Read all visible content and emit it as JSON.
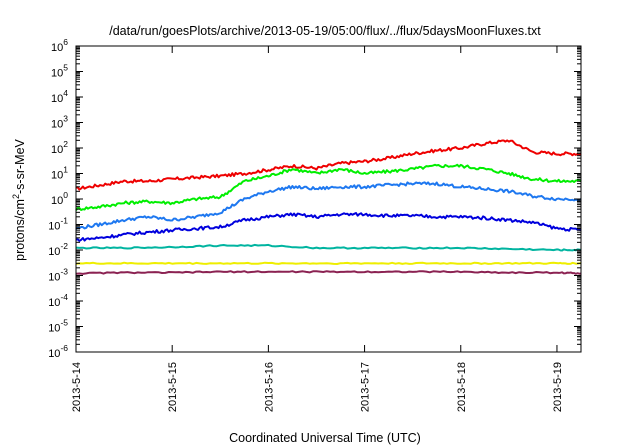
{
  "chart_data": {
    "type": "line",
    "title": "/data/run/goesPlots/archive/2013-05-19/05:00/flux/../flux/5daysMoonFluxes.txt",
    "xlabel": "Coordinated Universal Time (UTC)",
    "ylabel": "protons/cm2-s-sr-MeV",
    "yscale": "log",
    "xlim": [
      "2013-05-14",
      "2013-05-19 06:00"
    ],
    "ylim": [
      1e-06,
      1000000.0
    ],
    "grid": false,
    "legend": "none",
    "x_tick_labels": [
      "2013-5-14",
      "2013-5-15",
      "2013-5-16",
      "2013-5-17",
      "2013-5-18",
      "2013-5-19"
    ],
    "y_ticks": [
      {
        "base": "10",
        "exp": "-6"
      },
      {
        "base": "10",
        "exp": "-5"
      },
      {
        "base": "10",
        "exp": "-4"
      },
      {
        "base": "10",
        "exp": "-3"
      },
      {
        "base": "10",
        "exp": "-2"
      },
      {
        "base": "10",
        "exp": "-1"
      },
      {
        "base": "10",
        "exp": "0"
      },
      {
        "base": "10",
        "exp": "1"
      },
      {
        "base": "10",
        "exp": "2"
      },
      {
        "base": "10",
        "exp": "3"
      },
      {
        "base": "10",
        "exp": "4"
      },
      {
        "base": "10",
        "exp": "5"
      },
      {
        "base": "10",
        "exp": "6"
      }
    ],
    "series": [
      {
        "color": "#ee0000",
        "x": [
          "2013-05-14 00:00",
          "2013-05-14 06:00",
          "2013-05-14 12:00",
          "2013-05-14 18:00",
          "2013-05-15 00:00",
          "2013-05-15 06:00",
          "2013-05-15 12:00",
          "2013-05-15 18:00",
          "2013-05-16 00:00",
          "2013-05-16 06:00",
          "2013-05-16 12:00",
          "2013-05-16 18:00",
          "2013-05-17 00:00",
          "2013-05-17 06:00",
          "2013-05-17 12:00",
          "2013-05-17 18:00",
          "2013-05-18 00:00",
          "2013-05-18 06:00",
          "2013-05-18 12:00",
          "2013-05-18 18:00",
          "2013-05-19 00:00",
          "2013-05-19 06:00"
        ],
        "values": [
          2.5,
          3.5,
          5,
          5,
          6,
          7,
          8,
          10,
          14,
          20,
          16,
          25,
          30,
          40,
          60,
          80,
          100,
          150,
          200,
          70,
          60,
          60
        ]
      },
      {
        "color": "#00ee00",
        "x": [
          "2013-05-14 00:00",
          "2013-05-14 06:00",
          "2013-05-14 12:00",
          "2013-05-14 18:00",
          "2013-05-15 00:00",
          "2013-05-15 06:00",
          "2013-05-15 12:00",
          "2013-05-15 18:00",
          "2013-05-16 00:00",
          "2013-05-16 06:00",
          "2013-05-16 12:00",
          "2013-05-16 18:00",
          "2013-05-17 00:00",
          "2013-05-17 06:00",
          "2013-05-17 12:00",
          "2013-05-17 18:00",
          "2013-05-18 00:00",
          "2013-05-18 06:00",
          "2013-05-18 12:00",
          "2013-05-18 18:00",
          "2013-05-19 00:00",
          "2013-05-19 06:00"
        ],
        "values": [
          0.4,
          0.5,
          0.7,
          0.8,
          0.7,
          1,
          1.2,
          5,
          8,
          15,
          10,
          15,
          10,
          12,
          15,
          20,
          20,
          15,
          10,
          6,
          5,
          5
        ]
      },
      {
        "color": "#1e78f0",
        "x": [
          "2013-05-14 00:00",
          "2013-05-14 06:00",
          "2013-05-14 12:00",
          "2013-05-14 18:00",
          "2013-05-15 00:00",
          "2013-05-15 06:00",
          "2013-05-15 12:00",
          "2013-05-15 18:00",
          "2013-05-16 00:00",
          "2013-05-16 06:00",
          "2013-05-16 12:00",
          "2013-05-16 18:00",
          "2013-05-17 00:00",
          "2013-05-17 06:00",
          "2013-05-17 12:00",
          "2013-05-17 18:00",
          "2013-05-18 00:00",
          "2013-05-18 06:00",
          "2013-05-18 12:00",
          "2013-05-18 18:00",
          "2013-05-19 00:00",
          "2013-05-19 06:00"
        ],
        "values": [
          0.07,
          0.1,
          0.15,
          0.2,
          0.15,
          0.2,
          0.3,
          1,
          2,
          3,
          2.5,
          3,
          3,
          3.5,
          4,
          4,
          3,
          2.5,
          2,
          1.3,
          1,
          1
        ]
      },
      {
        "color": "#0000dd",
        "x": [
          "2013-05-14 00:00",
          "2013-05-14 06:00",
          "2013-05-14 12:00",
          "2013-05-14 18:00",
          "2013-05-15 00:00",
          "2013-05-15 06:00",
          "2013-05-15 12:00",
          "2013-05-15 18:00",
          "2013-05-16 00:00",
          "2013-05-16 06:00",
          "2013-05-16 12:00",
          "2013-05-16 18:00",
          "2013-05-17 00:00",
          "2013-05-17 06:00",
          "2013-05-17 12:00",
          "2013-05-17 18:00",
          "2013-05-18 00:00",
          "2013-05-18 06:00",
          "2013-05-18 12:00",
          "2013-05-18 18:00",
          "2013-05-19 00:00",
          "2013-05-19 06:00"
        ],
        "values": [
          0.025,
          0.03,
          0.04,
          0.05,
          0.06,
          0.07,
          0.08,
          0.15,
          0.2,
          0.25,
          0.2,
          0.25,
          0.25,
          0.22,
          0.22,
          0.2,
          0.2,
          0.18,
          0.15,
          0.12,
          0.07,
          0.06
        ]
      },
      {
        "color": "#00b4a0",
        "x": [
          "2013-05-14 00:00",
          "2013-05-14 12:00",
          "2013-05-15 00:00",
          "2013-05-15 12:00",
          "2013-05-16 00:00",
          "2013-05-16 12:00",
          "2013-05-17 00:00",
          "2013-05-17 12:00",
          "2013-05-18 00:00",
          "2013-05-18 12:00",
          "2013-05-19 00:00",
          "2013-05-19 06:00"
        ],
        "values": [
          0.012,
          0.012,
          0.013,
          0.015,
          0.015,
          0.012,
          0.012,
          0.012,
          0.012,
          0.011,
          0.01,
          0.01
        ]
      },
      {
        "color": "#eeee00",
        "x": [
          "2013-05-14 00:00",
          "2013-05-14 12:00",
          "2013-05-15 00:00",
          "2013-05-15 12:00",
          "2013-05-16 00:00",
          "2013-05-16 12:00",
          "2013-05-17 00:00",
          "2013-05-17 12:00",
          "2013-05-18 00:00",
          "2013-05-18 12:00",
          "2013-05-19 00:00",
          "2013-05-19 06:00"
        ],
        "values": [
          0.003,
          0.003,
          0.003,
          0.003,
          0.003,
          0.003,
          0.003,
          0.003,
          0.003,
          0.003,
          0.003,
          0.003
        ]
      },
      {
        "color": "#8b2252",
        "x": [
          "2013-05-14 00:00",
          "2013-05-14 12:00",
          "2013-05-15 00:00",
          "2013-05-15 12:00",
          "2013-05-16 00:00",
          "2013-05-16 12:00",
          "2013-05-17 00:00",
          "2013-05-17 12:00",
          "2013-05-18 00:00",
          "2013-05-18 12:00",
          "2013-05-19 00:00",
          "2013-05-19 06:00"
        ],
        "values": [
          0.0012,
          0.0013,
          0.0013,
          0.0014,
          0.0014,
          0.0014,
          0.0014,
          0.0014,
          0.0014,
          0.0013,
          0.0013,
          0.0012
        ]
      }
    ]
  }
}
